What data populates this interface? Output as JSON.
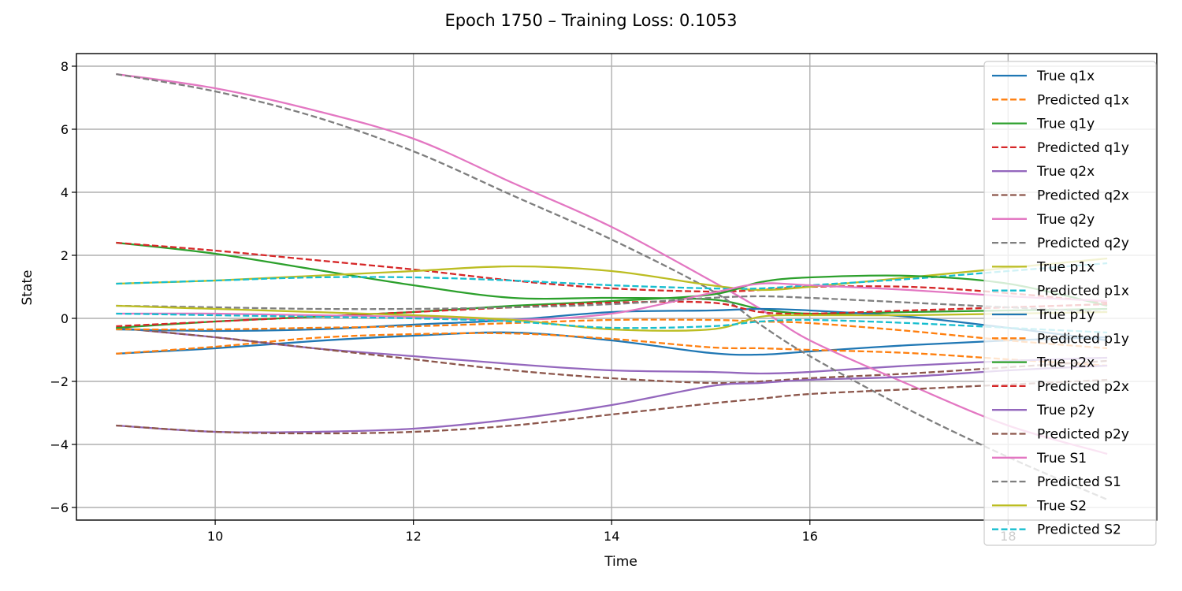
{
  "chart_data": {
    "type": "line",
    "title": "Epoch 1750 – Training Loss: 0.1053",
    "xlabel": "Time",
    "ylabel": "State",
    "xlim": [
      8.6,
      19.5
    ],
    "ylim": [
      -6.4,
      8.4
    ],
    "xticks": [
      10,
      12,
      14,
      16,
      18
    ],
    "yticks": [
      -6,
      -4,
      -2,
      0,
      2,
      4,
      6,
      8
    ],
    "xtick_labels": [
      "10",
      "12",
      "14",
      "16",
      "18"
    ],
    "ytick_labels": [
      "−6",
      "−4",
      "−2",
      "0",
      "2",
      "4",
      "6",
      "8"
    ],
    "grid": true,
    "legend_position": "top-right",
    "x": [
      9.0,
      10.0,
      11.0,
      12.0,
      13.0,
      14.0,
      15.0,
      15.5,
      16.0,
      17.0,
      18.0,
      19.0
    ],
    "series": [
      {
        "name": "True q1x",
        "color": "#1f77b4",
        "dash": "solid",
        "values": [
          -1.12,
          -0.95,
          -0.72,
          -0.55,
          -0.45,
          -0.7,
          -1.1,
          -1.15,
          -1.05,
          -0.85,
          -0.7,
          -0.6
        ]
      },
      {
        "name": "Predicted q1x",
        "color": "#ff7f0e",
        "dash": "dashed",
        "values": [
          -1.12,
          -0.9,
          -0.62,
          -0.5,
          -0.48,
          -0.65,
          -0.92,
          -0.95,
          -1.0,
          -1.1,
          -1.3,
          -1.5
        ]
      },
      {
        "name": "True q1y",
        "color": "#2ca02c",
        "dash": "solid",
        "values": [
          2.4,
          2.05,
          1.55,
          1.05,
          0.65,
          0.65,
          0.6,
          0.3,
          0.15,
          0.2,
          0.25,
          0.3
        ]
      },
      {
        "name": "Predicted q1y",
        "color": "#d62728",
        "dash": "dashed",
        "values": [
          2.4,
          2.15,
          1.85,
          1.55,
          1.2,
          0.95,
          0.85,
          0.9,
          1.0,
          1.0,
          0.8,
          0.5
        ]
      },
      {
        "name": "True q2x",
        "color": "#9467bd",
        "dash": "solid",
        "values": [
          -0.3,
          -0.6,
          -0.95,
          -1.2,
          -1.45,
          -1.65,
          -1.7,
          -1.75,
          -1.7,
          -1.5,
          -1.35,
          -1.25
        ]
      },
      {
        "name": "Predicted q2x",
        "color": "#8c564b",
        "dash": "dashed",
        "values": [
          -0.3,
          -0.6,
          -0.95,
          -1.3,
          -1.65,
          -1.9,
          -2.05,
          -2.0,
          -1.9,
          -1.75,
          -1.55,
          -1.35
        ]
      },
      {
        "name": "True q2y",
        "color": "#e377c2",
        "dash": "solid",
        "values": [
          7.75,
          7.3,
          6.6,
          5.7,
          4.3,
          2.9,
          1.2,
          0.3,
          -0.7,
          -2.1,
          -3.4,
          -4.3
        ]
      },
      {
        "name": "Predicted q2y",
        "color": "#7f7f7f",
        "dash": "dashed",
        "values": [
          7.75,
          7.2,
          6.4,
          5.3,
          3.9,
          2.5,
          0.9,
          -0.2,
          -1.2,
          -2.9,
          -4.4,
          -5.75
        ]
      },
      {
        "name": "True p1x",
        "color": "#bcbd22",
        "dash": "solid",
        "values": [
          1.1,
          1.2,
          1.35,
          1.5,
          1.65,
          1.5,
          1.05,
          0.9,
          1.0,
          1.3,
          1.6,
          1.9
        ]
      },
      {
        "name": "Predicted p1x",
        "color": "#17becf",
        "dash": "dashed",
        "values": [
          1.1,
          1.2,
          1.3,
          1.3,
          1.2,
          1.05,
          0.95,
          0.95,
          1.05,
          1.25,
          1.5,
          1.75
        ]
      },
      {
        "name": "True p1y",
        "color": "#1f77b4",
        "dash": "solid",
        "values": [
          -0.35,
          -0.4,
          -0.35,
          -0.2,
          -0.05,
          0.2,
          0.25,
          0.3,
          0.25,
          0.05,
          -0.3,
          -0.7
        ]
      },
      {
        "name": "Predicted p1y",
        "color": "#ff7f0e",
        "dash": "dashed",
        "values": [
          -0.35,
          -0.35,
          -0.3,
          -0.25,
          -0.15,
          -0.05,
          -0.05,
          -0.1,
          -0.15,
          -0.4,
          -0.7,
          -0.95
        ]
      },
      {
        "name": "True p2x",
        "color": "#2ca02c",
        "dash": "solid",
        "values": [
          -0.3,
          -0.1,
          0.05,
          0.2,
          0.4,
          0.55,
          0.75,
          1.15,
          1.3,
          1.35,
          1.1,
          0.4
        ]
      },
      {
        "name": "Predicted p2x",
        "color": "#d62728",
        "dash": "dashed",
        "values": [
          -0.25,
          -0.1,
          0.05,
          0.2,
          0.35,
          0.5,
          0.5,
          0.2,
          0.15,
          0.25,
          0.35,
          0.45
        ]
      },
      {
        "name": "True p2y",
        "color": "#9467bd",
        "dash": "solid",
        "values": [
          -3.4,
          -3.6,
          -3.6,
          -3.5,
          -3.2,
          -2.75,
          -2.15,
          -2.05,
          -1.95,
          -1.85,
          -1.65,
          -1.5
        ]
      },
      {
        "name": "Predicted p2y",
        "color": "#8c564b",
        "dash": "dashed",
        "values": [
          -3.4,
          -3.6,
          -3.65,
          -3.6,
          -3.4,
          -3.05,
          -2.7,
          -2.55,
          -2.4,
          -2.25,
          -2.1,
          -1.95
        ]
      },
      {
        "name": "True S1",
        "color": "#e377c2",
        "dash": "solid",
        "values": [
          0.15,
          0.15,
          0.1,
          0.05,
          -0.05,
          0.15,
          0.8,
          1.1,
          1.05,
          0.9,
          0.7,
          0.55
        ]
      },
      {
        "name": "Predicted S1",
        "color": "#7f7f7f",
        "dash": "dashed",
        "values": [
          0.4,
          0.35,
          0.3,
          0.3,
          0.35,
          0.45,
          0.65,
          0.7,
          0.65,
          0.5,
          0.35,
          0.2
        ]
      },
      {
        "name": "True S2",
        "color": "#bcbd22",
        "dash": "solid",
        "values": [
          0.4,
          0.3,
          0.2,
          0.1,
          -0.05,
          -0.35,
          -0.35,
          0.05,
          0.1,
          0.1,
          0.15,
          0.2
        ]
      },
      {
        "name": "Predicted S2",
        "color": "#17becf",
        "dash": "dashed",
        "values": [
          0.15,
          0.1,
          0.05,
          0.0,
          -0.1,
          -0.3,
          -0.25,
          -0.1,
          -0.05,
          -0.15,
          -0.3,
          -0.45
        ]
      }
    ]
  }
}
